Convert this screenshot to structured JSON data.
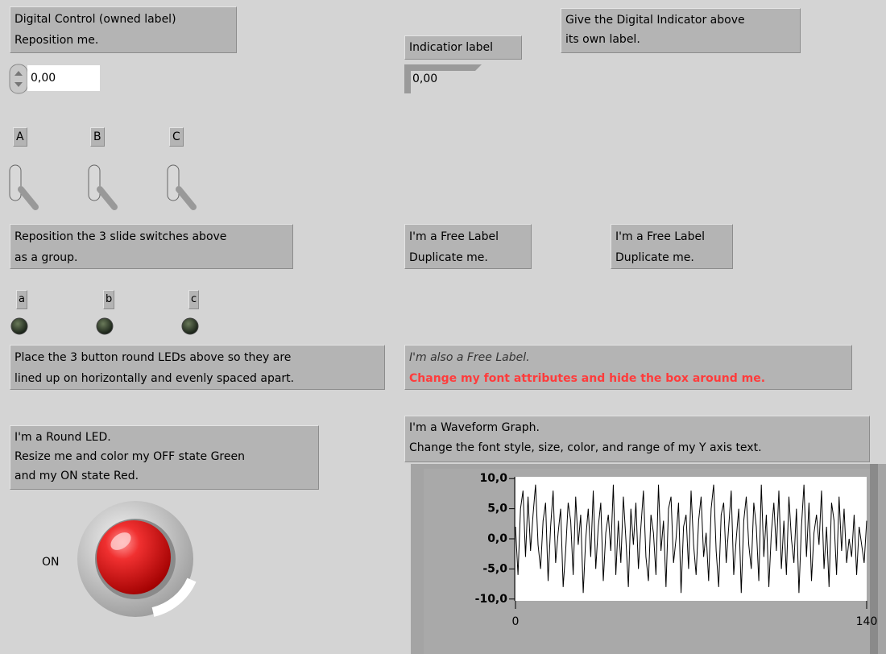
{
  "panel": {
    "control_label": [
      "Digital Control (owned label)",
      "Reposition me."
    ],
    "control_value": "0,00",
    "indicator_label": "Indicatior label",
    "indicator_value": "0,00",
    "note_indicator": [
      "Give the Digital Indicator above",
      "its own label."
    ],
    "switch_labels": [
      "A",
      "B",
      "C"
    ],
    "note_switches": [
      "Reposition the 3 slide switches above",
      "as a group."
    ],
    "free_labels": [
      [
        "I'm a Free Label",
        "Duplicate me."
      ],
      [
        "I'm a Free Label",
        "Duplicate me."
      ]
    ],
    "led_labels": [
      "a",
      "b",
      "c"
    ],
    "note_leds": [
      "Place the 3 button round LEDs above so they are",
      "lined up on horizontally and evenly spaced apart."
    ],
    "styled_label": [
      "I'm also a Free Label.",
      "Change my font attributes and hide the box around me."
    ],
    "round_led_note": [
      "I'm a Round LED.",
      "Resize me and color my OFF state Green",
      "and my ON state Red."
    ],
    "round_led_state": "ON",
    "graph_label": [
      "I'm a Waveform Graph.",
      "Change the font style, size, color, and range of my Y axis text."
    ]
  },
  "chart_data": {
    "type": "line",
    "color": "#000000",
    "values": [
      2,
      -6,
      5,
      8,
      -3,
      7,
      -2,
      4,
      9,
      -1,
      -5,
      3,
      6,
      -7,
      2,
      8,
      -4,
      1,
      5,
      -8,
      -2,
      6,
      3,
      -6,
      7,
      -1,
      4,
      -9,
      0,
      5,
      -3,
      8,
      -5,
      2,
      6,
      -7,
      1,
      4,
      -2,
      9,
      -6,
      3,
      -4,
      7,
      0,
      -8,
      5,
      -1,
      6,
      -5,
      2,
      8,
      -3,
      -7,
      4,
      1,
      -6,
      9,
      -2,
      3,
      -8,
      5,
      7,
      -4,
      0,
      6,
      -9,
      2,
      4,
      -5,
      8,
      -1,
      -6,
      3,
      7,
      -3,
      1,
      -7,
      5,
      9,
      -2,
      -8,
      4,
      6,
      -4,
      2,
      8,
      -6,
      0,
      5,
      -9,
      3,
      7,
      -1,
      -5,
      6,
      2,
      -7,
      9,
      -3,
      4,
      -8,
      1,
      6,
      -2,
      8,
      -5,
      3,
      -6,
      7,
      0,
      -4,
      5,
      -9,
      2,
      9,
      -3,
      6,
      -7,
      1,
      4,
      -1,
      8,
      -5,
      2,
      -8,
      6,
      3,
      -6,
      7,
      -2,
      5,
      -4,
      0,
      -3,
      4,
      -6,
      2,
      -1,
      -4,
      3
    ],
    "xlim": [
      0,
      140
    ],
    "xticks": [
      0,
      140
    ],
    "ylim": [
      -10.3,
      10.3
    ],
    "yticks": [
      {
        "value": 10,
        "label": "10,0"
      },
      {
        "value": 5,
        "label": "5,0"
      },
      {
        "value": 0,
        "label": "0,0"
      },
      {
        "value": -5,
        "label": "-5,0"
      },
      {
        "value": -10,
        "label": "-10,0"
      }
    ]
  }
}
